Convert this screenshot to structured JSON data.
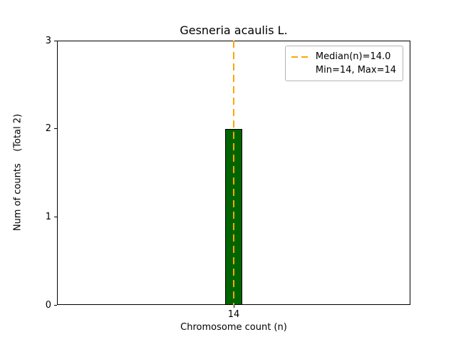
{
  "chart_data": {
    "type": "bar",
    "title": "Gesneria acaulis L.",
    "xlabel": "Chromosome count (n)",
    "ylabel": "Num of counts    (Total 2)",
    "categories": [
      "14"
    ],
    "values": [
      2
    ],
    "total_counts": 2,
    "ylim": [
      0,
      3
    ],
    "yticks": [
      "0",
      "1",
      "2",
      "3"
    ],
    "xticks": [
      "14"
    ],
    "grid": "off",
    "bar_color": "#006400",
    "bar_edge_color": "#000000",
    "median_line": {
      "value": 14.0,
      "color": "#FFA500",
      "style": "dashed"
    },
    "legend": {
      "position": "upper right",
      "entries": [
        {
          "label": "Median(n)=14.0",
          "symbol": "dashed-line",
          "color": "#FFA500"
        },
        {
          "label": "Min=14, Max=14",
          "symbol": "none"
        }
      ]
    }
  }
}
